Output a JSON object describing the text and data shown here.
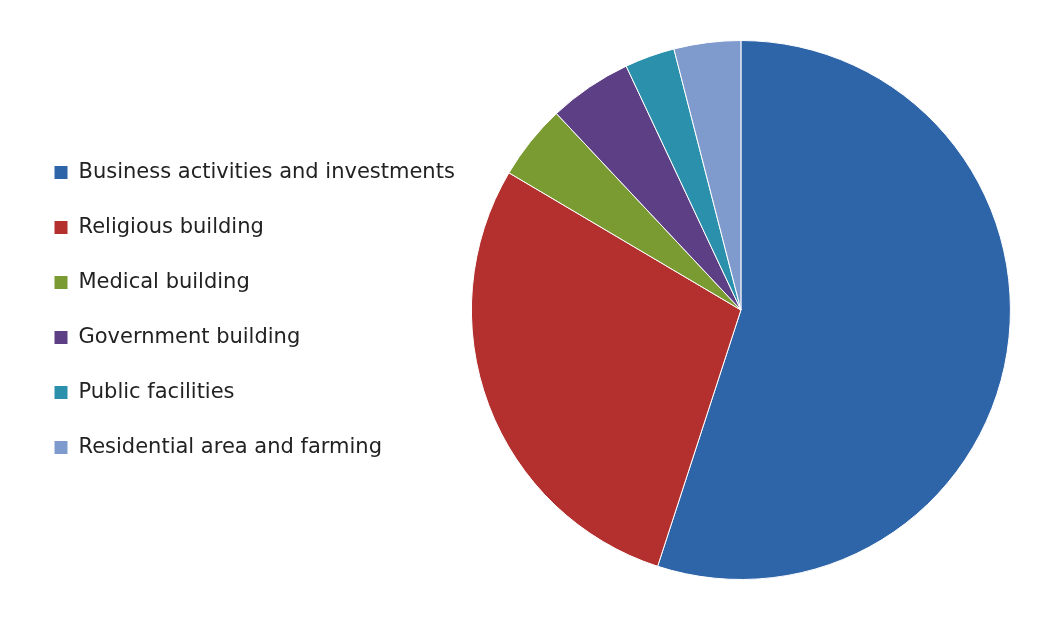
{
  "chart_data": {
    "type": "pie",
    "categories": [
      "Business activities and investments",
      "Religious building",
      "Medical building",
      "Government building",
      "Public facilities",
      "Residential area and farming"
    ],
    "values": [
      55,
      28.5,
      4.5,
      5,
      3,
      4
    ],
    "colors": [
      "#2e64a8",
      "#b3302e",
      "#7a9a32",
      "#5c3f85",
      "#2a90ab",
      "#7f9bcd"
    ],
    "legend": "left"
  }
}
